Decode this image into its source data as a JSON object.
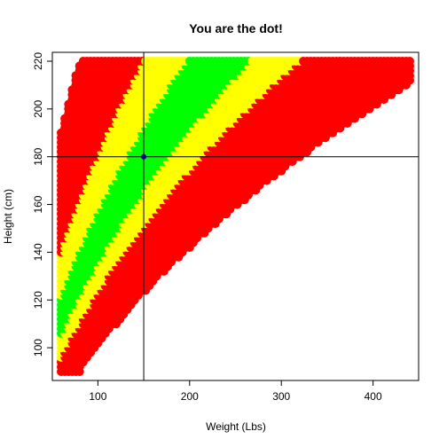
{
  "chart_data": {
    "type": "scatter",
    "title": "You are the dot!",
    "xlabel": "Weight (Lbs)",
    "ylabel": "Height (cm)",
    "xlim": [
      60,
      440
    ],
    "ylim": [
      90,
      220
    ],
    "xticks": [
      100,
      200,
      300,
      400
    ],
    "yticks": [
      100,
      120,
      140,
      160,
      180,
      200,
      220
    ],
    "grid": false,
    "legend": "none",
    "series": [
      {
        "description": "BMI category regions drawn as dense point grid",
        "colors": {
          "underweight_extreme": "#ff0000",
          "borderline": "#ffff00",
          "healthy": "#00ff00",
          "overweight": "#ffff00",
          "obese": "#ff0000"
        }
      }
    ],
    "highlight_point": {
      "x": 150,
      "y": 180,
      "color": "#00008b"
    },
    "reference_lines": {
      "vline_x": 150,
      "hline_y": 180
    }
  }
}
